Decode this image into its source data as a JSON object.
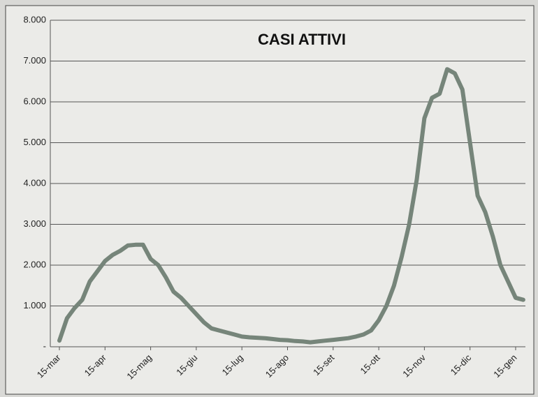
{
  "chart_data": {
    "type": "line",
    "title": "CASI ATTIVI",
    "categories": [
      "15-mar",
      null,
      null,
      null,
      null,
      null,
      "15-apr",
      null,
      null,
      null,
      null,
      null,
      "15-mag",
      null,
      null,
      null,
      null,
      null,
      "15-giu",
      null,
      null,
      null,
      null,
      null,
      "15-lug",
      null,
      null,
      null,
      null,
      null,
      "15-ago",
      null,
      null,
      null,
      null,
      null,
      "15-set",
      null,
      null,
      null,
      null,
      null,
      "15-ott",
      null,
      null,
      null,
      null,
      null,
      "15-nov",
      null,
      null,
      null,
      null,
      null,
      "15-dic",
      null,
      null,
      null,
      null,
      null,
      "15-gen",
      null
    ],
    "values": [
      150,
      700,
      950,
      1150,
      1600,
      1850,
      2100,
      2250,
      2350,
      2480,
      2500,
      2500,
      2150,
      2000,
      1700,
      1350,
      1200,
      1000,
      800,
      600,
      450,
      400,
      350,
      300,
      250,
      230,
      220,
      210,
      190,
      170,
      160,
      140,
      130,
      110,
      130,
      150,
      170,
      190,
      210,
      250,
      300,
      400,
      650,
      1000,
      1500,
      2200,
      3000,
      4100,
      5600,
      6100,
      6200,
      6800,
      6700,
      6300,
      5000,
      3700,
      3300,
      2700,
      2000,
      1600,
      1200,
      1150
    ],
    "color": "#76857a",
    "ylim": [
      0,
      8000
    ],
    "yticks": [
      {
        "value": 0,
        "label": "-"
      },
      {
        "value": 1000,
        "label": "1.000"
      },
      {
        "value": 2000,
        "label": "2.000"
      },
      {
        "value": 3000,
        "label": "3.000"
      },
      {
        "value": 4000,
        "label": "4.000"
      },
      {
        "value": 5000,
        "label": "5.000"
      },
      {
        "value": 6000,
        "label": "6.000"
      },
      {
        "value": 7000,
        "label": "7.000"
      },
      {
        "value": 8000,
        "label": "8.000"
      }
    ],
    "grid": true
  }
}
